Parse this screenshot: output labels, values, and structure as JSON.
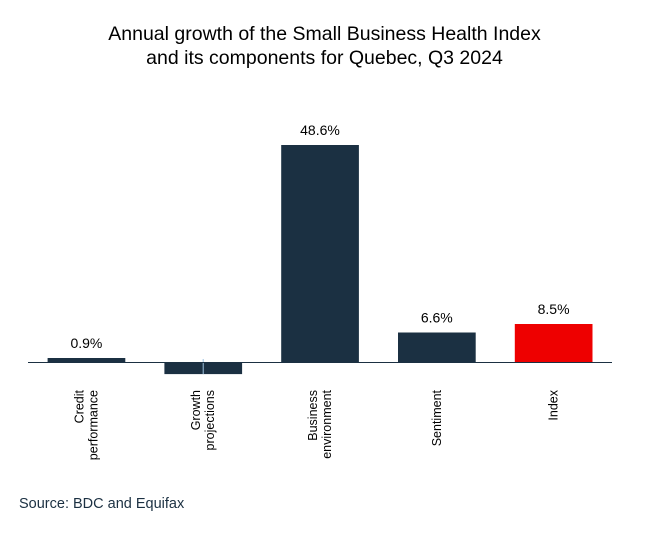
{
  "chart_data": {
    "type": "bar",
    "title": "Annual growth of the Small Business Health Index and its components for Quebec, Q3 2024",
    "title_lines": [
      "Annual growth of the Small Business Health Index",
      "and its components for Quebec, Q3 2024"
    ],
    "xlabel": "",
    "ylabel": "",
    "categories": [
      "Credit performance",
      "Growth projections",
      "Business environment",
      "Sentiment",
      "Index"
    ],
    "category_lines": [
      [
        "Credit",
        "performance"
      ],
      [
        "Growth",
        "projections"
      ],
      [
        "Business",
        "environment"
      ],
      [
        "Sentiment"
      ],
      [
        "Index"
      ]
    ],
    "values": [
      0.9,
      -2.7,
      48.6,
      6.6,
      8.5
    ],
    "data_labels": [
      "0.9%",
      "",
      "48.6%",
      "6.6%",
      "8.5%"
    ],
    "colors": [
      "#1b3042",
      "#1b3042",
      "#1b3042",
      "#1b3042",
      "#ee0000"
    ],
    "ylim": [
      -5,
      55
    ],
    "grid": false,
    "legend": "none",
    "axis_color": "#1b3042"
  },
  "source": "Source: BDC and Equifax"
}
